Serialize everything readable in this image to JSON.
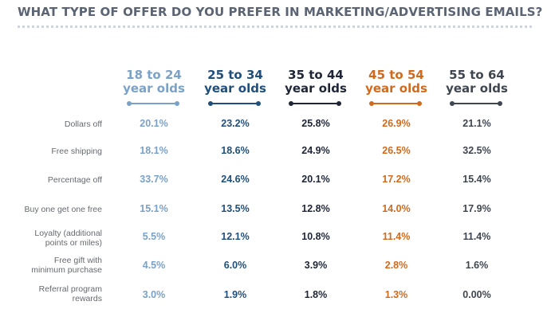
{
  "title": "WHAT TYPE OF OFFER DO YOU PREFER IN MARKETING/ADVERTISING EMAILS?",
  "colors": {
    "title": "#5a6473",
    "divider": "#cfd3da",
    "label": "#666a70",
    "g1": "#7aa2c8",
    "g2": "#1f4f7a",
    "g3": "#1e2536",
    "g4": "#d16a1c",
    "g5": "#3f4650"
  },
  "columns": [
    {
      "line1": "18 to 24",
      "line2": "year olds",
      "color": "#7aa2c8"
    },
    {
      "line1": "25 to 34",
      "line2": "year olds",
      "color": "#1f4f7a"
    },
    {
      "line1": "35 to 44",
      "line2": "year olds",
      "color": "#1e2536"
    },
    {
      "line1": "45 to 54",
      "line2": "year olds",
      "color": "#d16a1c"
    },
    {
      "line1": "55 to 64",
      "line2": "year olds",
      "color": "#3f4650"
    }
  ],
  "rows": [
    {
      "label1": "Dollars off",
      "label2": "",
      "values": [
        "20.1%",
        "23.2%",
        "25.8%",
        "26.9%",
        "21.1%"
      ]
    },
    {
      "label1": "Free shipping",
      "label2": "",
      "values": [
        "18.1%",
        "18.6%",
        "24.9%",
        "26.5%",
        "32.5%"
      ]
    },
    {
      "label1": "Percentage off",
      "label2": "",
      "values": [
        "33.7%",
        "24.6%",
        "20.1%",
        "17.2%",
        "15.4%"
      ]
    },
    {
      "label1": "Buy one get one free",
      "label2": "",
      "values": [
        "15.1%",
        "13.5%",
        "12.8%",
        "14.0%",
        "17.9%"
      ]
    },
    {
      "label1": "Loyalty (additional",
      "label2": "points or miles)",
      "values": [
        "5.5%",
        "12.1%",
        "10.8%",
        "11.4%",
        "11.4%"
      ]
    },
    {
      "label1": "Free gift with",
      "label2": "minimum purchase",
      "values": [
        "4.5%",
        "6.0%",
        "3.9%",
        "2.8%",
        "1.6%"
      ]
    },
    {
      "label1": "Referral program",
      "label2": "rewards",
      "values": [
        "3.0%",
        "1.9%",
        "1.8%",
        "1.3%",
        "0.00%"
      ]
    }
  ],
  "chart_data": {
    "type": "table",
    "title": "WHAT TYPE OF OFFER DO YOU PREFER IN MARKETING/ADVERTISING EMAILS?",
    "columns": [
      "18 to 24 year olds",
      "25 to 34 year olds",
      "35 to 44 year olds",
      "45 to 54 year olds",
      "55 to 64 year olds"
    ],
    "rows": [
      "Dollars off",
      "Free shipping",
      "Percentage off",
      "Buy one get one free",
      "Loyalty (additional points or miles)",
      "Free gift with minimum purchase",
      "Referral program rewards"
    ],
    "series": [
      {
        "name": "18 to 24 year olds",
        "values": [
          20.1,
          18.1,
          33.7,
          15.1,
          5.5,
          4.5,
          3.0
        ]
      },
      {
        "name": "25 to 34 year olds",
        "values": [
          23.2,
          18.6,
          24.6,
          13.5,
          12.1,
          6.0,
          1.9
        ]
      },
      {
        "name": "35 to 44 year olds",
        "values": [
          25.8,
          24.9,
          20.1,
          12.8,
          10.8,
          3.9,
          1.8
        ]
      },
      {
        "name": "45 to 54 year olds",
        "values": [
          26.9,
          26.5,
          17.2,
          14.0,
          11.4,
          2.8,
          1.3
        ]
      },
      {
        "name": "55 to 64 year olds",
        "values": [
          21.1,
          32.5,
          15.4,
          17.9,
          11.4,
          1.6,
          0.0
        ]
      }
    ]
  }
}
